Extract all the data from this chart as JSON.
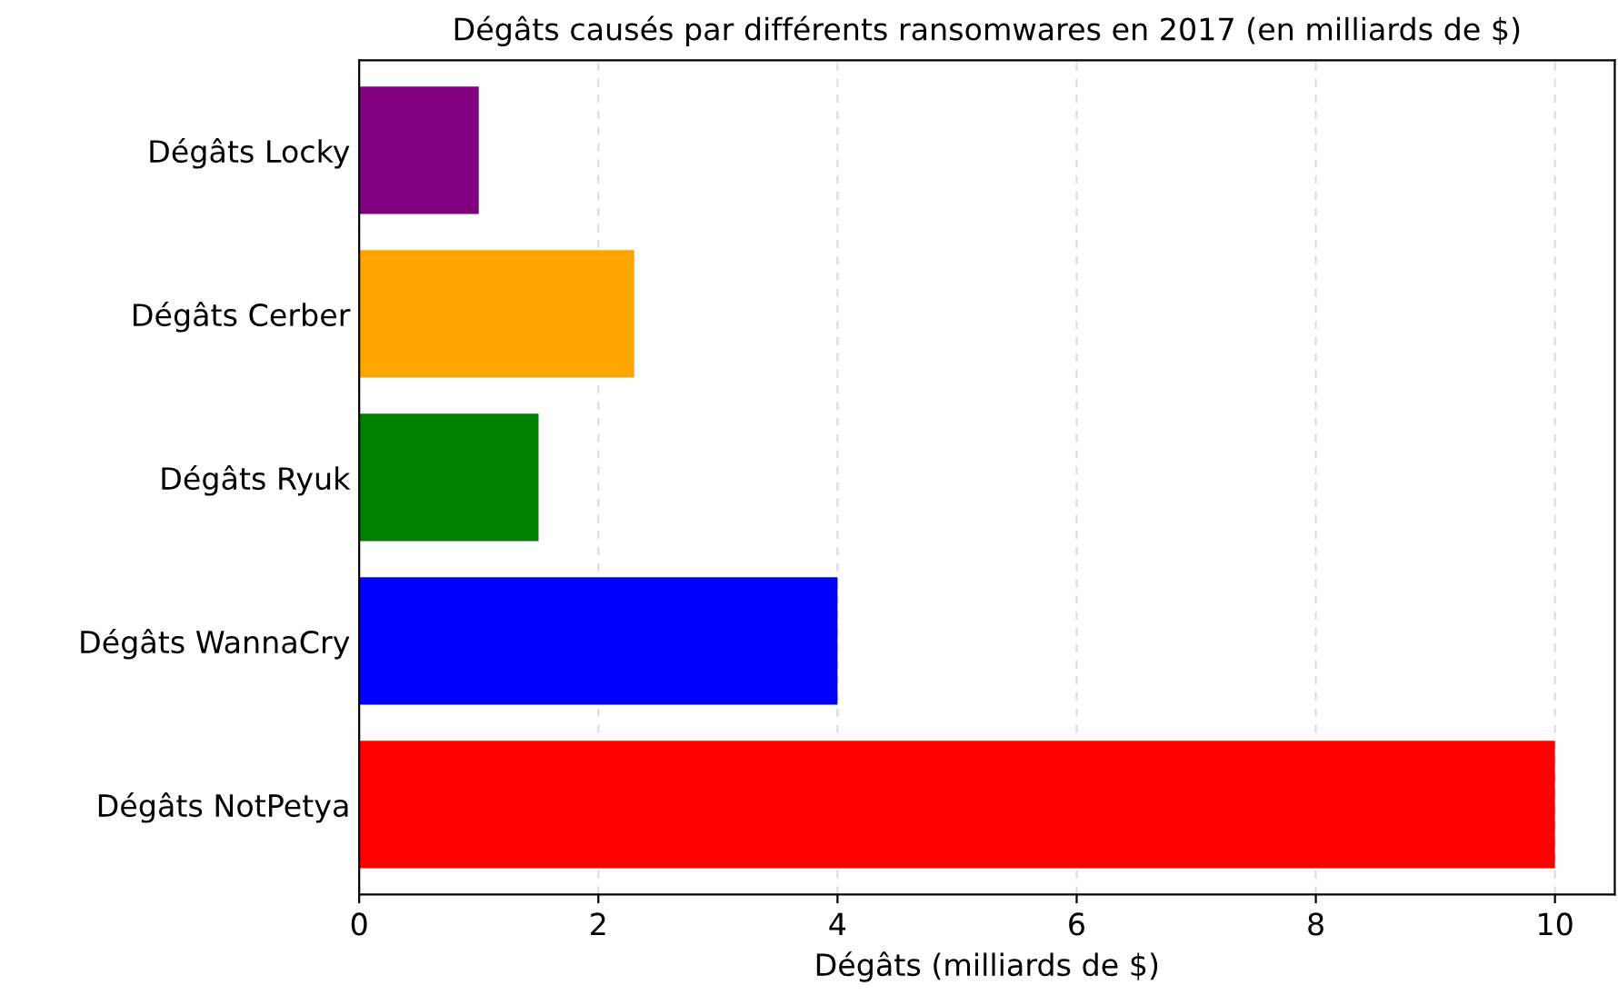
{
  "chart_data": {
    "type": "bar",
    "orientation": "horizontal",
    "title": "Dégâts causés par différents ransomwares en 2017 (en milliards de $)",
    "xlabel": "Dégâts (milliards de $)",
    "categories": [
      "Dégâts Locky",
      "Dégâts Cerber",
      "Dégâts Ryuk",
      "Dégâts WannaCry",
      "Dégâts NotPetya"
    ],
    "values": [
      1,
      2.3,
      1.5,
      4,
      10
    ],
    "colors": [
      "#800080",
      "#ffa500",
      "#008000",
      "#0000ff",
      "#ff0000"
    ],
    "xlim": [
      0,
      10.5
    ],
    "xticks": [
      0,
      2,
      4,
      6,
      8,
      10
    ],
    "grid": "x"
  }
}
